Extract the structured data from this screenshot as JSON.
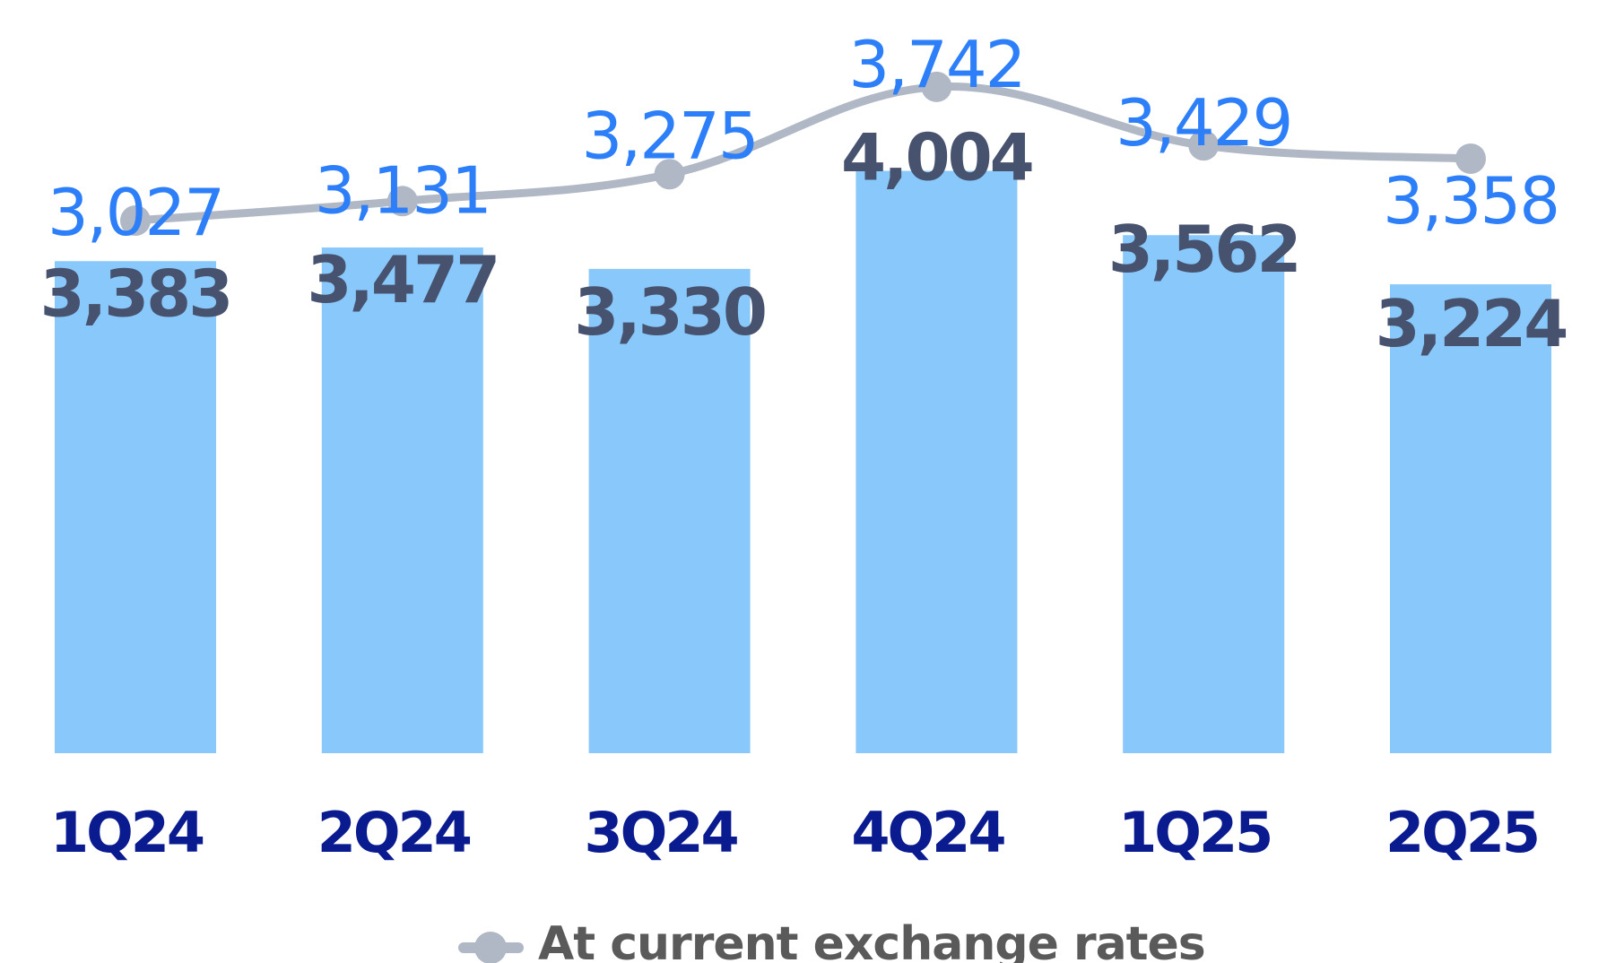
{
  "chart_data": {
    "type": "bar",
    "categories": [
      "1Q24",
      "2Q24",
      "3Q24",
      "4Q24",
      "1Q25",
      "2Q25"
    ],
    "series": [
      {
        "type": "bar",
        "values": [
          3383,
          3477,
          3330,
          4004,
          3562,
          3224
        ],
        "labels": [
          "3,383",
          "3,477",
          "3,330",
          "4,004",
          "3,562",
          "3,224"
        ],
        "color": "#88C8FB",
        "label_color": "#46526E"
      },
      {
        "name": "At current exchange rates",
        "type": "line",
        "values": [
          3027,
          3131,
          3275,
          3742,
          3429,
          3358
        ],
        "labels": [
          "3,027",
          "3,131",
          "3,275",
          "3,742",
          "3,429",
          "3,358"
        ],
        "color": "#B0B8C5",
        "label_color": "#2D7FF9"
      }
    ],
    "category_label_color": "#0A1A8F",
    "legend": {
      "position": "bottom",
      "entries": [
        {
          "label": "At current exchange rates",
          "marker": "line-dot",
          "color": "#B0B8C5",
          "text_color": "#5A5A5A"
        }
      ]
    },
    "grid": false,
    "ylim": [
      0,
      4004
    ]
  }
}
